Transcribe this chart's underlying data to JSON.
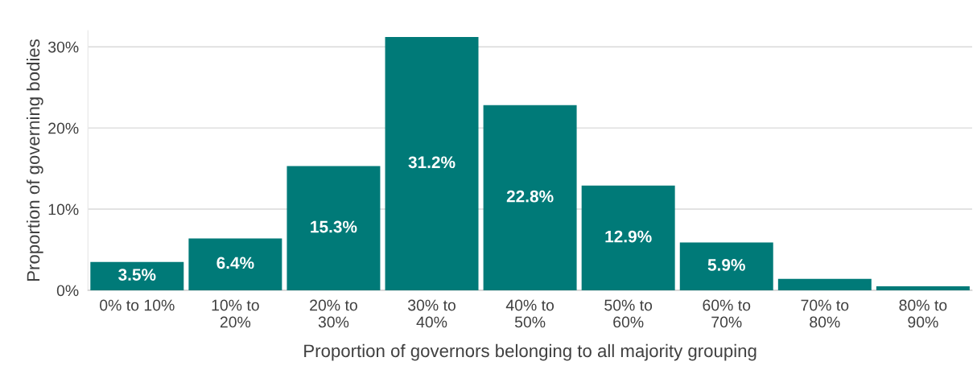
{
  "chart_data": {
    "type": "bar",
    "xlabel": "Proportion of governors belonging to all majority grouping",
    "ylabel": "Proportion of governing bodies",
    "categories": [
      "0% to 10%",
      "10% to\n20%",
      "20% to\n30%",
      "30% to\n40%",
      "40% to\n50%",
      "50% to\n60%",
      "60% to\n70%",
      "70% to\n80%",
      "80% to\n90%"
    ],
    "values": [
      3.5,
      6.4,
      15.3,
      31.2,
      22.8,
      12.9,
      5.9,
      1.4,
      0.5
    ],
    "value_labels": [
      "3.5%",
      "6.4%",
      "15.3%",
      "31.2%",
      "22.8%",
      "12.9%",
      "5.9%",
      null,
      null
    ],
    "color": "#007a78",
    "ylim": [
      0,
      32
    ],
    "yticks": [
      {
        "value": 0,
        "label": "0%"
      },
      {
        "value": 10,
        "label": "10%"
      },
      {
        "value": 20,
        "label": "20%"
      },
      {
        "value": 30,
        "label": "30%"
      }
    ],
    "grid": "y"
  }
}
